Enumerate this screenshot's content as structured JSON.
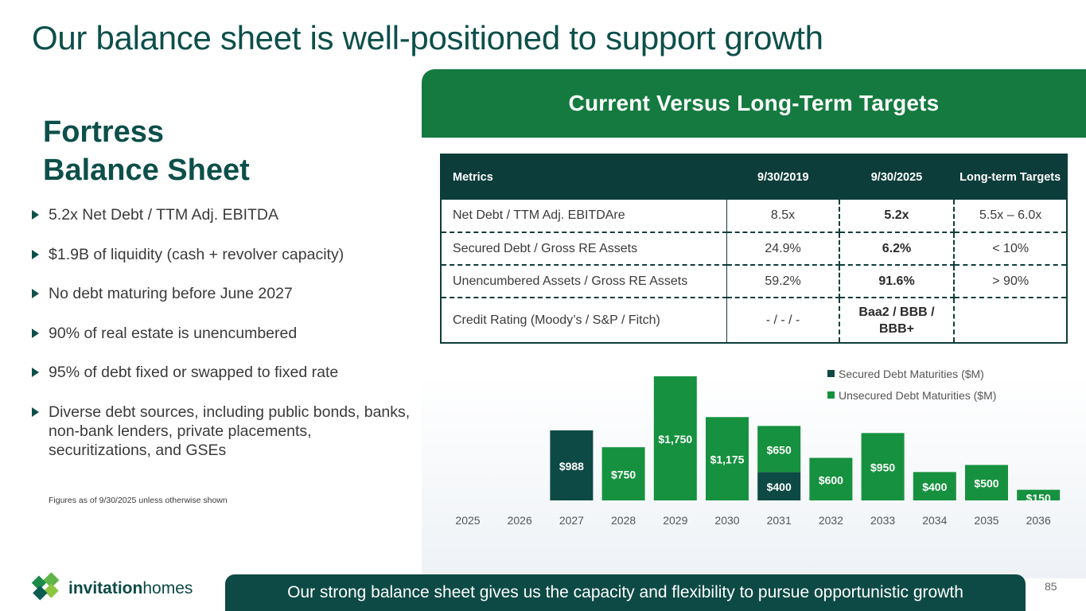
{
  "title": "Our balance sheet is well-positioned to support growth",
  "section": {
    "heading_line1": "Fortress",
    "heading_line2": "Balance Sheet",
    "bullets": [
      "5.2x Net Debt / TTM Adj. EBITDA",
      "$1.9B of liquidity (cash + revolver capacity)",
      "No debt maturing before June 2027",
      "90% of real estate is unencumbered",
      "95% of debt fixed or swapped to fixed rate",
      "Diverse debt sources, including public bonds, banks, non-bank lenders, private placements, securitizations, and GSEs"
    ],
    "footnote": "Figures as of 9/30/2025 unless otherwise shown"
  },
  "panel": {
    "header": "Current Versus Long-Term Targets"
  },
  "table": {
    "columns": [
      "Metrics",
      "9/30/2019",
      "9/30/2025",
      "Long-term Targets"
    ],
    "rows": [
      [
        "Net Debt / TTM Adj. EBITDAre",
        "8.5x",
        "5.2x",
        "5.5x – 6.0x"
      ],
      [
        "Secured Debt / Gross RE Assets",
        "24.9%",
        "6.2%",
        "< 10%"
      ],
      [
        "Unencumbered Assets / Gross RE Assets",
        "59.2%",
        "91.6%",
        "> 90%"
      ],
      [
        "Credit Rating (Moody’s / S&P / Fitch)",
        "- / - / -",
        "Baa2 / BBB / BBB+",
        ""
      ]
    ]
  },
  "chart_data": {
    "type": "bar",
    "stacked": true,
    "categories": [
      "2025",
      "2026",
      "2027",
      "2028",
      "2029",
      "2030",
      "2031",
      "2032",
      "2033",
      "2034",
      "2035",
      "2036"
    ],
    "series": [
      {
        "name": "Secured Debt Maturities ($M)",
        "color": "#0d4a45",
        "values": [
          0,
          0,
          988,
          0,
          0,
          0,
          400,
          0,
          0,
          0,
          0,
          0
        ]
      },
      {
        "name": "Unsecured Debt Maturities ($M)",
        "color": "#16913f",
        "values": [
          0,
          0,
          0,
          750,
          1750,
          1175,
          650,
          600,
          950,
          400,
          500,
          150
        ]
      }
    ],
    "data_labels": [
      "",
      "",
      "$988",
      "$750",
      "$1,750",
      "$1,175",
      "$400|$650",
      "$600",
      "$950",
      "$400",
      "$500",
      "$150"
    ],
    "legend_position": "top-right",
    "grid": false
  },
  "footer": {
    "banner": "Our strong balance sheet gives us the capacity and flexibility to pursue opportunistic growth",
    "page_number": "85",
    "logo_text": "invitation homes",
    "logo_text_bold": "invitation",
    "logo_text_regular": "homes"
  },
  "colors": {
    "dark_teal": "#0d4a45",
    "green": "#16913f",
    "header_green": "#157a40"
  }
}
